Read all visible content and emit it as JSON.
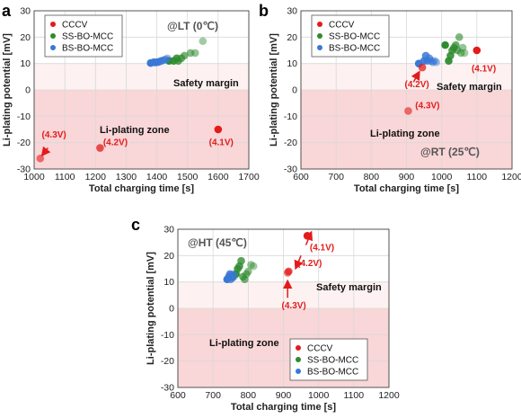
{
  "colors": {
    "cccv": "#e31b1b",
    "ss": "#2e8b2e",
    "bs": "#3a78d6",
    "margin_fill": "#fdf1f1",
    "plating_fill": "#f9d6d7",
    "grid": "#d9d9d9",
    "arrow": "#e31b1b"
  },
  "chart_data": [
    {
      "panel": "a",
      "type": "scatter",
      "xlabel": "Total charging time [s]",
      "ylabel": "Li-plating potential [mV]",
      "xlim": [
        1000,
        1700
      ],
      "ylim": [
        -30,
        30
      ],
      "xticks": [
        1000,
        1100,
        1200,
        1300,
        1400,
        1500,
        1600,
        1700
      ],
      "yticks": [
        -30,
        -20,
        -10,
        0,
        10,
        20,
        30
      ],
      "grid": true,
      "legend": {
        "placement": "top-left",
        "entries": [
          "CCCV",
          "SS-BO-MCC",
          "BS-BO-MCC"
        ]
      },
      "condition": "@LT (0℃)",
      "margin_label": "Safety margin",
      "zone_label": "Li-plating zone",
      "margin_range": [
        0,
        10
      ],
      "series": [
        {
          "name": "CCCV",
          "points": [
            [
              1020,
              -26
            ],
            [
              1215,
              -22
            ],
            [
              1600,
              -15
            ]
          ]
        },
        {
          "name": "SS-BO-MCC",
          "points": [
            [
              1440,
              11
            ],
            [
              1455,
              11
            ],
            [
              1465,
              12
            ],
            [
              1470,
              11
            ],
            [
              1480,
              12
            ],
            [
              1490,
              13
            ],
            [
              1510,
              14
            ],
            [
              1525,
              14
            ],
            [
              1550,
              18.5
            ]
          ]
        },
        {
          "name": "BS-BO-MCC",
          "points": [
            [
              1380,
              10.2
            ],
            [
              1390,
              10.5
            ],
            [
              1395,
              10.4
            ],
            [
              1400,
              10.5
            ],
            [
              1405,
              10.6
            ],
            [
              1410,
              10.8
            ],
            [
              1415,
              11
            ],
            [
              1420,
              11.2
            ],
            [
              1425,
              11.4
            ],
            [
              1430,
              11.6
            ],
            [
              1435,
              12
            ]
          ]
        }
      ],
      "annotations": [
        {
          "text": "(4.3V)",
          "x": 1025,
          "y": -18
        },
        {
          "text": "(4.2V)",
          "x": 1225,
          "y": -21
        },
        {
          "text": "(4.1V)",
          "x": 1570,
          "y": -21
        }
      ]
    },
    {
      "panel": "b",
      "type": "scatter",
      "xlabel": "Total charging time [s]",
      "ylabel": "Li-plating potential [mV]",
      "xlim": [
        600,
        1200
      ],
      "ylim": [
        -30,
        30
      ],
      "xticks": [
        600,
        700,
        800,
        900,
        1000,
        1100,
        1200
      ],
      "yticks": [
        -30,
        -20,
        -10,
        0,
        10,
        20,
        30
      ],
      "grid": true,
      "legend": {
        "placement": "top-left",
        "entries": [
          "CCCV",
          "SS-BO-MCC",
          "BS-BO-MCC"
        ]
      },
      "condition": "@RT (25℃)",
      "margin_label": "Safety margin",
      "zone_label": "Li-plating zone",
      "margin_range": [
        0,
        10
      ],
      "series": [
        {
          "name": "CCCV",
          "points": [
            [
              905,
              -8
            ],
            [
              945,
              8.5
            ],
            [
              1100,
              15
            ]
          ]
        },
        {
          "name": "SS-BO-MCC",
          "points": [
            [
              1010,
              17
            ],
            [
              1020,
              11
            ],
            [
              1025,
              13
            ],
            [
              1030,
              15
            ],
            [
              1035,
              16
            ],
            [
              1040,
              17
            ],
            [
              1045,
              15
            ],
            [
              1050,
              20
            ],
            [
              1055,
              14
            ],
            [
              1060,
              16
            ],
            [
              1065,
              14
            ]
          ]
        },
        {
          "name": "BS-BO-MCC",
          "points": [
            [
              935,
              10
            ],
            [
              950,
              11
            ],
            [
              955,
              13
            ],
            [
              960,
              11
            ],
            [
              965,
              12
            ],
            [
              970,
              11
            ],
            [
              975,
              10.5
            ],
            [
              980,
              11
            ],
            [
              985,
              10.5
            ]
          ]
        }
      ],
      "annotations": [
        {
          "text": "(4.3V)",
          "x": 925,
          "y": -7
        },
        {
          "text": "(4.2V)",
          "x": 895,
          "y": 1
        },
        {
          "text": "(4.1V)",
          "x": 1085,
          "y": 7
        }
      ]
    },
    {
      "panel": "c",
      "type": "scatter",
      "xlabel": "Total charging time [s]",
      "ylabel": "Li-plating potential [mV]",
      "xlim": [
        600,
        1200
      ],
      "ylim": [
        -30,
        30
      ],
      "xticks": [
        600,
        700,
        800,
        900,
        1000,
        1100,
        1200
      ],
      "yticks": [
        -30,
        -20,
        -10,
        0,
        10,
        20,
        30
      ],
      "grid": true,
      "legend": {
        "placement": "bottom-right",
        "entries": [
          "CCCV",
          "SS-BO-MCC",
          "BS-BO-MCC"
        ]
      },
      "condition": "@HT (45℃)",
      "margin_label": "Safety margin",
      "zone_label": "Li-plating zone",
      "margin_range": [
        0,
        10
      ],
      "series": [
        {
          "name": "CCCV",
          "points": [
            [
              912,
              13.5
            ],
            [
              915,
              14
            ],
            [
              968,
              27.5
            ]
          ]
        },
        {
          "name": "SS-BO-MCC",
          "points": [
            [
              755,
              12
            ],
            [
              765,
              13
            ],
            [
              770,
              15
            ],
            [
              775,
              16
            ],
            [
              780,
              18
            ],
            [
              785,
              12
            ],
            [
              790,
              11
            ],
            [
              795,
              13
            ],
            [
              800,
              14
            ],
            [
              808,
              16.5
            ],
            [
              815,
              16
            ]
          ]
        },
        {
          "name": "BS-BO-MCC",
          "points": [
            [
              740,
              11
            ],
            [
              745,
              12
            ],
            [
              748,
              13
            ],
            [
              750,
              11
            ],
            [
              752,
              12.5
            ],
            [
              755,
              11.5
            ],
            [
              758,
              13
            ],
            [
              760,
              12
            ]
          ]
        }
      ],
      "annotations": [
        {
          "text": "(4.1V)",
          "x": 975,
          "y": 22
        },
        {
          "text": "(4.2V)",
          "x": 940,
          "y": 16
        },
        {
          "text": "(4.3V)",
          "x": 895,
          "y": 0
        }
      ]
    }
  ]
}
